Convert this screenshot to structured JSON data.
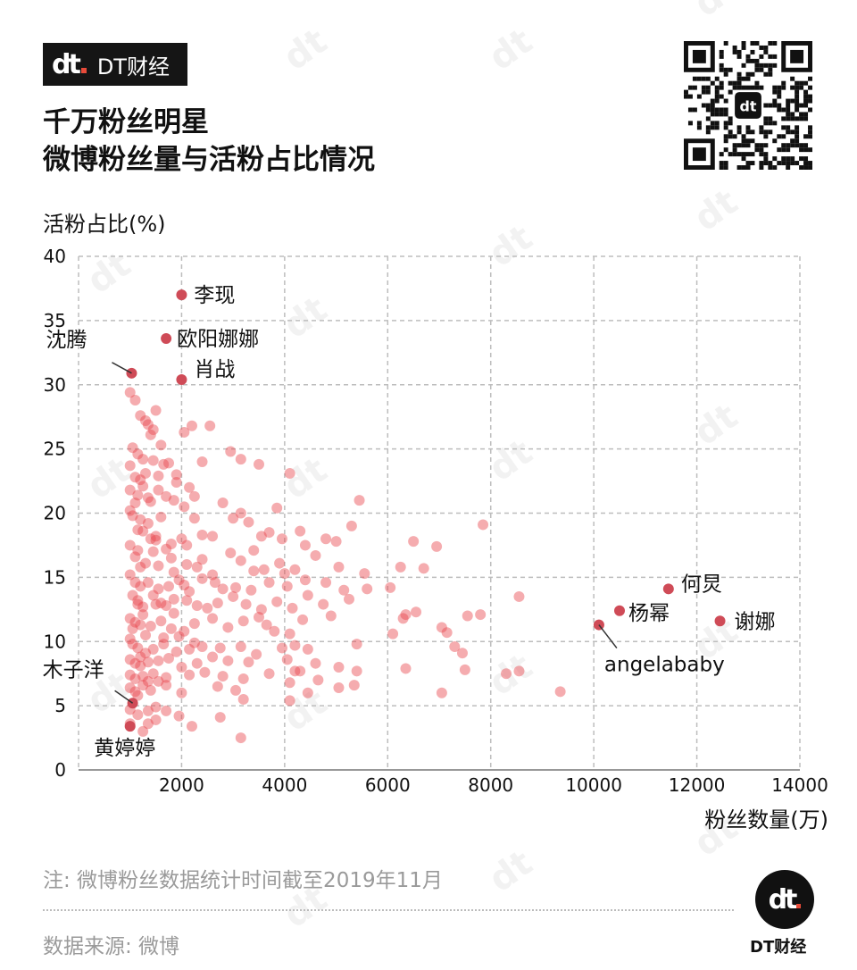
{
  "brand": {
    "logo_text": "DT财经",
    "badge_label": "DT财经"
  },
  "title_lines": [
    "千万粉丝明星",
    "微博粉丝量与活粉占比情况"
  ],
  "note": "注: 微博粉丝数据统计时间截至2019年11月",
  "source": "数据来源: 微博",
  "colors": {
    "point": "#e8474d",
    "highlight": "#cf4b57",
    "grid": "#bdbdbd",
    "brand_dot": "#e84b3a"
  },
  "chart_data": {
    "type": "scatter",
    "title": "千万粉丝明星 微博粉丝量与活粉占比情况",
    "xlabel": "粉丝数量(万)",
    "ylabel": "活粉占比(%)",
    "xlim": [
      0,
      14000
    ],
    "ylim": [
      0,
      40
    ],
    "x_ticks": [
      2000,
      4000,
      6000,
      8000,
      10000,
      12000,
      14000
    ],
    "y_ticks": [
      0,
      5,
      10,
      15,
      20,
      25,
      30,
      35,
      40
    ],
    "grid": true,
    "labeled_points": [
      {
        "name": "李现",
        "x": 2000,
        "y": 37.0
      },
      {
        "name": "欧阳娜娜",
        "x": 1700,
        "y": 33.6
      },
      {
        "name": "肖战",
        "x": 2000,
        "y": 30.4
      },
      {
        "name": "沈腾",
        "x": 1030,
        "y": 30.9
      },
      {
        "name": "何炅",
        "x": 11450,
        "y": 14.1
      },
      {
        "name": "杨幂",
        "x": 10500,
        "y": 12.4
      },
      {
        "name": "谢娜",
        "x": 12450,
        "y": 11.6
      },
      {
        "name": "angelababy",
        "x": 10100,
        "y": 11.3
      },
      {
        "name": "木子洋",
        "x": 1050,
        "y": 5.2
      },
      {
        "name": "黄婷婷",
        "x": 1000,
        "y": 3.4
      }
    ],
    "points": [
      [
        1000,
        29.4
      ],
      [
        1100,
        28.8
      ],
      [
        1200,
        27.6
      ],
      [
        1300,
        27.2
      ],
      [
        1400,
        26.1
      ],
      [
        1500,
        28.0
      ],
      [
        1450,
        26.5
      ],
      [
        1350,
        26.9
      ],
      [
        1600,
        25.3
      ],
      [
        1050,
        25.1
      ],
      [
        1150,
        24.6
      ],
      [
        1250,
        24.2
      ],
      [
        1450,
        24.1
      ],
      [
        1650,
        23.8
      ],
      [
        1900,
        23.0
      ],
      [
        2150,
        22.0
      ],
      [
        2400,
        24.0
      ],
      [
        2550,
        26.8
      ],
      [
        2050,
        26.3
      ],
      [
        2200,
        26.8
      ],
      [
        2950,
        24.8
      ],
      [
        3150,
        24.2
      ],
      [
        3500,
        23.8
      ],
      [
        4100,
        23.1
      ],
      [
        1000,
        23.7
      ],
      [
        1100,
        22.8
      ],
      [
        1200,
        22.6
      ],
      [
        1300,
        23.1
      ],
      [
        1550,
        21.8
      ],
      [
        1700,
        21.3
      ],
      [
        1850,
        21.0
      ],
      [
        1000,
        21.8
      ],
      [
        1150,
        21.4
      ],
      [
        1000,
        20.2
      ],
      [
        1050,
        19.8
      ],
      [
        1200,
        19.5
      ],
      [
        1350,
        19.2
      ],
      [
        1150,
        18.7
      ],
      [
        1250,
        18.6
      ],
      [
        1400,
        18.0
      ],
      [
        1500,
        17.9
      ],
      [
        1700,
        17.2
      ],
      [
        1800,
        17.6
      ],
      [
        2000,
        18.0
      ],
      [
        2050,
        20.5
      ],
      [
        2250,
        19.6
      ],
      [
        2400,
        18.3
      ],
      [
        2600,
        18.2
      ],
      [
        2800,
        20.8
      ],
      [
        3000,
        19.6
      ],
      [
        3150,
        20.0
      ],
      [
        3300,
        19.3
      ],
      [
        3550,
        18.2
      ],
      [
        3700,
        18.5
      ],
      [
        3850,
        20.4
      ],
      [
        3950,
        18.0
      ],
      [
        4300,
        18.6
      ],
      [
        4800,
        18.0
      ],
      [
        5000,
        17.8
      ],
      [
        5300,
        19.0
      ],
      [
        5450,
        21.0
      ],
      [
        6500,
        17.8
      ],
      [
        6950,
        17.4
      ],
      [
        7850,
        19.1
      ],
      [
        1000,
        17.5
      ],
      [
        1100,
        16.6
      ],
      [
        1300,
        16.1
      ],
      [
        1550,
        15.9
      ],
      [
        1800,
        16.5
      ],
      [
        2100,
        16.0
      ],
      [
        2300,
        15.8
      ],
      [
        2600,
        15.2
      ],
      [
        3150,
        16.3
      ],
      [
        3400,
        15.5
      ],
      [
        3600,
        15.6
      ],
      [
        3900,
        16.1
      ],
      [
        4200,
        15.6
      ],
      [
        4400,
        17.5
      ],
      [
        4600,
        16.7
      ],
      [
        5050,
        15.8
      ],
      [
        5550,
        15.3
      ],
      [
        6250,
        15.8
      ],
      [
        6700,
        15.7
      ],
      [
        1000,
        15.2
      ],
      [
        1100,
        14.6
      ],
      [
        1200,
        14.3
      ],
      [
        1350,
        14.6
      ],
      [
        1550,
        14.1
      ],
      [
        1750,
        14.3
      ],
      [
        1950,
        14.8
      ],
      [
        2050,
        14.4
      ],
      [
        2400,
        14.9
      ],
      [
        2650,
        14.6
      ],
      [
        2800,
        14.1
      ],
      [
        3050,
        14.2
      ],
      [
        3350,
        14.0
      ],
      [
        3700,
        14.6
      ],
      [
        4050,
        14.3
      ],
      [
        4400,
        14.8
      ],
      [
        4800,
        14.6
      ],
      [
        5150,
        14.0
      ],
      [
        5600,
        14.1
      ],
      [
        6050,
        14.2
      ],
      [
        1050,
        13.6
      ],
      [
        1150,
        13.2
      ],
      [
        1250,
        12.7
      ],
      [
        1500,
        12.9
      ],
      [
        1600,
        13.0
      ],
      [
        1850,
        13.3
      ],
      [
        2100,
        13.2
      ],
      [
        2300,
        12.8
      ],
      [
        2700,
        13.0
      ],
      [
        3000,
        13.5
      ],
      [
        3250,
        12.9
      ],
      [
        3550,
        12.5
      ],
      [
        3850,
        13.1
      ],
      [
        4150,
        12.6
      ],
      [
        4450,
        13.6
      ],
      [
        4750,
        12.9
      ],
      [
        5250,
        13.3
      ],
      [
        6350,
        12.1
      ],
      [
        6550,
        12.3
      ],
      [
        8550,
        13.5
      ],
      [
        1000,
        11.8
      ],
      [
        1100,
        11.5
      ],
      [
        1200,
        11.3
      ],
      [
        1400,
        11.2
      ],
      [
        1600,
        11.6
      ],
      [
        1800,
        11.0
      ],
      [
        2050,
        10.8
      ],
      [
        2250,
        11.4
      ],
      [
        2600,
        11.8
      ],
      [
        2900,
        11.1
      ],
      [
        3200,
        11.6
      ],
      [
        3500,
        11.9
      ],
      [
        3800,
        10.8
      ],
      [
        4100,
        10.6
      ],
      [
        4350,
        11.7
      ],
      [
        4900,
        12.0
      ],
      [
        6100,
        10.6
      ],
      [
        6300,
        11.8
      ],
      [
        7050,
        11.1
      ],
      [
        7150,
        10.7
      ],
      [
        7550,
        12.0
      ],
      [
        7800,
        12.1
      ],
      [
        1000,
        10.2
      ],
      [
        1050,
        9.8
      ],
      [
        1150,
        9.5
      ],
      [
        1300,
        9.1
      ],
      [
        1450,
        9.4
      ],
      [
        1650,
        9.8
      ],
      [
        1900,
        9.2
      ],
      [
        2150,
        9.4
      ],
      [
        2400,
        9.6
      ],
      [
        2750,
        9.5
      ],
      [
        3150,
        9.6
      ],
      [
        3450,
        9.0
      ],
      [
        3950,
        9.5
      ],
      [
        4200,
        9.7
      ],
      [
        4450,
        9.4
      ],
      [
        5400,
        9.8
      ],
      [
        7300,
        9.6
      ],
      [
        7450,
        9.1
      ],
      [
        1000,
        8.6
      ],
      [
        1100,
        8.3
      ],
      [
        1200,
        8.1
      ],
      [
        1350,
        8.4
      ],
      [
        1550,
        8.5
      ],
      [
        1750,
        8.7
      ],
      [
        2000,
        8.0
      ],
      [
        2300,
        8.3
      ],
      [
        2600,
        8.8
      ],
      [
        2900,
        8.5
      ],
      [
        3300,
        8.4
      ],
      [
        4050,
        8.6
      ],
      [
        4200,
        7.7
      ],
      [
        4600,
        8.3
      ],
      [
        5050,
        8.0
      ],
      [
        1000,
        7.4
      ],
      [
        1100,
        7.1
      ],
      [
        1250,
        7.3
      ],
      [
        1450,
        7.5
      ],
      [
        1700,
        7.2
      ],
      [
        2150,
        7.4
      ],
      [
        2450,
        7.6
      ],
      [
        2800,
        7.3
      ],
      [
        3200,
        7.1
      ],
      [
        3700,
        7.5
      ],
      [
        4300,
        7.7
      ],
      [
        4650,
        7.0
      ],
      [
        5400,
        7.7
      ],
      [
        6350,
        7.9
      ],
      [
        7500,
        7.8
      ],
      [
        8300,
        7.5
      ],
      [
        8550,
        7.7
      ],
      [
        1000,
        6.4
      ],
      [
        1100,
        6.1
      ],
      [
        1250,
        6.6
      ],
      [
        1400,
        6.2
      ],
      [
        1550,
        6.9
      ],
      [
        1700,
        6.6
      ],
      [
        2000,
        6.0
      ],
      [
        2700,
        6.5
      ],
      [
        3050,
        6.2
      ],
      [
        4100,
        6.8
      ],
      [
        4450,
        6.0
      ],
      [
        5050,
        6.4
      ],
      [
        5350,
        6.6
      ],
      [
        7050,
        6.0
      ],
      [
        9350,
        6.1
      ],
      [
        1000,
        4.7
      ],
      [
        1150,
        4.3
      ],
      [
        1350,
        4.6
      ],
      [
        1500,
        4.9
      ],
      [
        1700,
        4.6
      ],
      [
        1950,
        4.2
      ],
      [
        2750,
        4.1
      ],
      [
        3200,
        5.5
      ],
      [
        4100,
        5.4
      ],
      [
        1000,
        3.6
      ],
      [
        1250,
        3.0
      ],
      [
        1500,
        3.9
      ],
      [
        1350,
        3.6
      ],
      [
        2200,
        3.4
      ],
      [
        3150,
        2.5
      ],
      [
        1200,
        15.8
      ],
      [
        1400,
        20.9
      ],
      [
        1600,
        19.7
      ],
      [
        1750,
        23.9
      ],
      [
        1900,
        22.4
      ],
      [
        2250,
        21.3
      ],
      [
        2100,
        17.5
      ],
      [
        2400,
        16.4
      ],
      [
        1300,
        10.5
      ],
      [
        1250,
        12.1
      ],
      [
        1150,
        17.1
      ],
      [
        1500,
        18.2
      ],
      [
        1850,
        12.2
      ],
      [
        2150,
        13.9
      ],
      [
        2250,
        9.9
      ],
      [
        1950,
        10.4
      ],
      [
        1450,
        13.6
      ],
      [
        1700,
        12.8
      ],
      [
        1650,
        10.3
      ],
      [
        1850,
        15.4
      ],
      [
        2500,
        12.6
      ],
      [
        2950,
        16.9
      ],
      [
        3400,
        17.1
      ],
      [
        3650,
        11.3
      ],
      [
        4000,
        15.3
      ],
      [
        1100,
        20.8
      ],
      [
        1250,
        22.1
      ],
      [
        1350,
        21.2
      ],
      [
        1450,
        17.0
      ],
      [
        1550,
        22.9
      ],
      [
        1150,
        12.9
      ],
      [
        1050,
        11.0
      ],
      [
        1200,
        8.8
      ],
      [
        1350,
        6.9
      ],
      [
        1150,
        5.8
      ]
    ]
  }
}
